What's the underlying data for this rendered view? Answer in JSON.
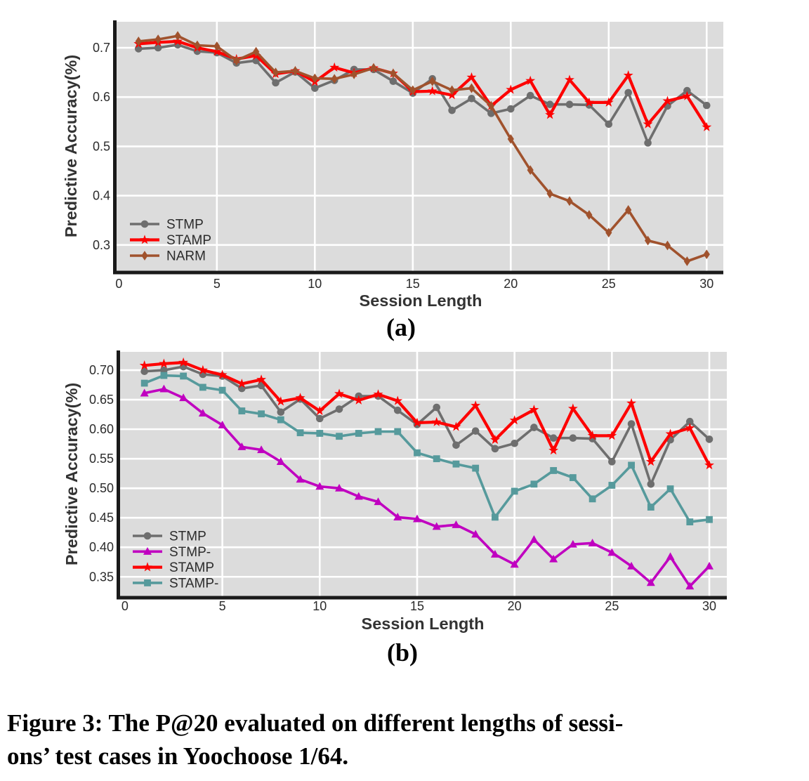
{
  "figure": {
    "caption_line1": "Figure 3: The P@20 evaluated on different lengths of sessi-",
    "caption_line2": "ons’ test cases in Yoochoose 1/64."
  },
  "colors": {
    "plot_background": "#dcdcdc",
    "gridline": "#ffffff",
    "axis_spine": "#1a1a1a",
    "tick_text": "#2b2b2b",
    "axis_label_text": "#333333",
    "stmp_gray": "#6e6e6e",
    "stamp_red": "#fd0000",
    "narm_brown": "#a0522d",
    "stmp_minus_magenta": "#c000c0",
    "stamp_minus_teal": "#569a9c"
  },
  "chart_data": [
    {
      "id": "a",
      "type": "line",
      "sublabel": "(a)",
      "xlabel": "Session Length",
      "ylabel": "Predictive Accuracy(%)",
      "grid": true,
      "legend_position": "lower left",
      "xlim": [
        -0.12,
        30.85
      ],
      "ylim": [
        0.247,
        0.7527
      ],
      "x": [
        1,
        2,
        3,
        4,
        5,
        6,
        7,
        8,
        9,
        10,
        11,
        12,
        13,
        14,
        15,
        16,
        17,
        18,
        19,
        20,
        21,
        22,
        23,
        24,
        25,
        26,
        27,
        28,
        29,
        30
      ],
      "xtick_values": [
        0,
        5,
        10,
        15,
        20,
        25,
        30
      ],
      "xtick_labels": [
        "0",
        "5",
        "10",
        "15",
        "20",
        "25",
        "30"
      ],
      "ytick_values": [
        0.3,
        0.4,
        0.5,
        0.6,
        0.7
      ],
      "ytick_labels": [
        "0.3",
        "0.4",
        "0.5",
        "0.6",
        "0.7"
      ],
      "series": [
        {
          "name": "STMP",
          "color": "#6e6e6e",
          "marker": "circle",
          "values": [
            0.698,
            0.7,
            0.706,
            0.693,
            0.69,
            0.669,
            0.674,
            0.629,
            0.651,
            0.618,
            0.634,
            0.656,
            0.656,
            0.632,
            0.608,
            0.637,
            0.573,
            0.597,
            0.567,
            0.576,
            0.603,
            0.585,
            0.585,
            0.584,
            0.545,
            0.609,
            0.507,
            0.582,
            0.613,
            0.583
          ]
        },
        {
          "name": "STAMP",
          "color": "#fd0000",
          "marker": "star",
          "values": [
            0.708,
            0.711,
            0.713,
            0.7,
            0.692,
            0.677,
            0.684,
            0.647,
            0.653,
            0.631,
            0.66,
            0.649,
            0.659,
            0.648,
            0.611,
            0.612,
            0.604,
            0.64,
            0.582,
            0.615,
            0.633,
            0.564,
            0.635,
            0.589,
            0.589,
            0.644,
            0.545,
            0.592,
            0.602,
            0.539
          ]
        },
        {
          "name": "NARM",
          "color": "#a0522d",
          "marker": "thin-diamond",
          "values": [
            0.713,
            0.717,
            0.724,
            0.705,
            0.703,
            0.674,
            0.692,
            0.65,
            0.653,
            0.638,
            0.637,
            0.646,
            0.659,
            0.648,
            0.614,
            0.632,
            0.614,
            0.618,
            0.582,
            0.515,
            0.452,
            0.404,
            0.389,
            0.361,
            0.325,
            0.371,
            0.309,
            0.299,
            0.267,
            0.281
          ]
        }
      ]
    },
    {
      "id": "b",
      "type": "line",
      "sublabel": "(b)",
      "xlabel": "Session Length",
      "ylabel": "Predictive Accuracy(%)",
      "grid": true,
      "legend_position": "lower left",
      "xlim": [
        -0.25,
        30.9
      ],
      "ylim": [
        0.317,
        0.731
      ],
      "x": [
        1,
        2,
        3,
        4,
        5,
        6,
        7,
        8,
        9,
        10,
        11,
        12,
        13,
        14,
        15,
        16,
        17,
        18,
        19,
        20,
        21,
        22,
        23,
        24,
        25,
        26,
        27,
        28,
        29,
        30
      ],
      "xtick_values": [
        0,
        5,
        10,
        15,
        20,
        25,
        30
      ],
      "xtick_labels": [
        "0",
        "5",
        "10",
        "15",
        "20",
        "25",
        "30"
      ],
      "ytick_values": [
        0.35,
        0.4,
        0.45,
        0.5,
        0.55,
        0.6,
        0.65,
        0.7
      ],
      "ytick_labels": [
        "0.35",
        "0.40",
        "0.45",
        "0.50",
        "0.55",
        "0.60",
        "0.65",
        "0.70"
      ],
      "series": [
        {
          "name": "STMP",
          "color": "#6e6e6e",
          "marker": "circle",
          "values": [
            0.698,
            0.7,
            0.706,
            0.693,
            0.69,
            0.669,
            0.674,
            0.629,
            0.651,
            0.618,
            0.634,
            0.656,
            0.656,
            0.632,
            0.608,
            0.637,
            0.573,
            0.597,
            0.567,
            0.576,
            0.603,
            0.585,
            0.585,
            0.584,
            0.545,
            0.609,
            0.507,
            0.582,
            0.613,
            0.583
          ]
        },
        {
          "name": "STMP-",
          "color": "#c000c0",
          "marker": "triangle",
          "values": [
            0.661,
            0.668,
            0.653,
            0.627,
            0.607,
            0.57,
            0.565,
            0.545,
            0.515,
            0.503,
            0.5,
            0.486,
            0.477,
            0.451,
            0.448,
            0.435,
            0.438,
            0.422,
            0.388,
            0.371,
            0.413,
            0.38,
            0.405,
            0.407,
            0.391,
            0.368,
            0.34,
            0.384,
            0.334,
            0.368
          ]
        },
        {
          "name": "STAMP",
          "color": "#fd0000",
          "marker": "star",
          "values": [
            0.708,
            0.711,
            0.713,
            0.7,
            0.692,
            0.677,
            0.684,
            0.647,
            0.653,
            0.631,
            0.66,
            0.649,
            0.659,
            0.648,
            0.611,
            0.612,
            0.604,
            0.64,
            0.582,
            0.615,
            0.633,
            0.564,
            0.635,
            0.589,
            0.589,
            0.644,
            0.545,
            0.592,
            0.602,
            0.539
          ]
        },
        {
          "name": "STAMP-",
          "color": "#569a9c",
          "marker": "square",
          "values": [
            0.678,
            0.691,
            0.69,
            0.671,
            0.666,
            0.631,
            0.626,
            0.616,
            0.594,
            0.593,
            0.588,
            0.593,
            0.596,
            0.596,
            0.56,
            0.55,
            0.541,
            0.534,
            0.451,
            0.495,
            0.507,
            0.53,
            0.518,
            0.482,
            0.505,
            0.539,
            0.468,
            0.499,
            0.443,
            0.447
          ]
        }
      ]
    }
  ]
}
